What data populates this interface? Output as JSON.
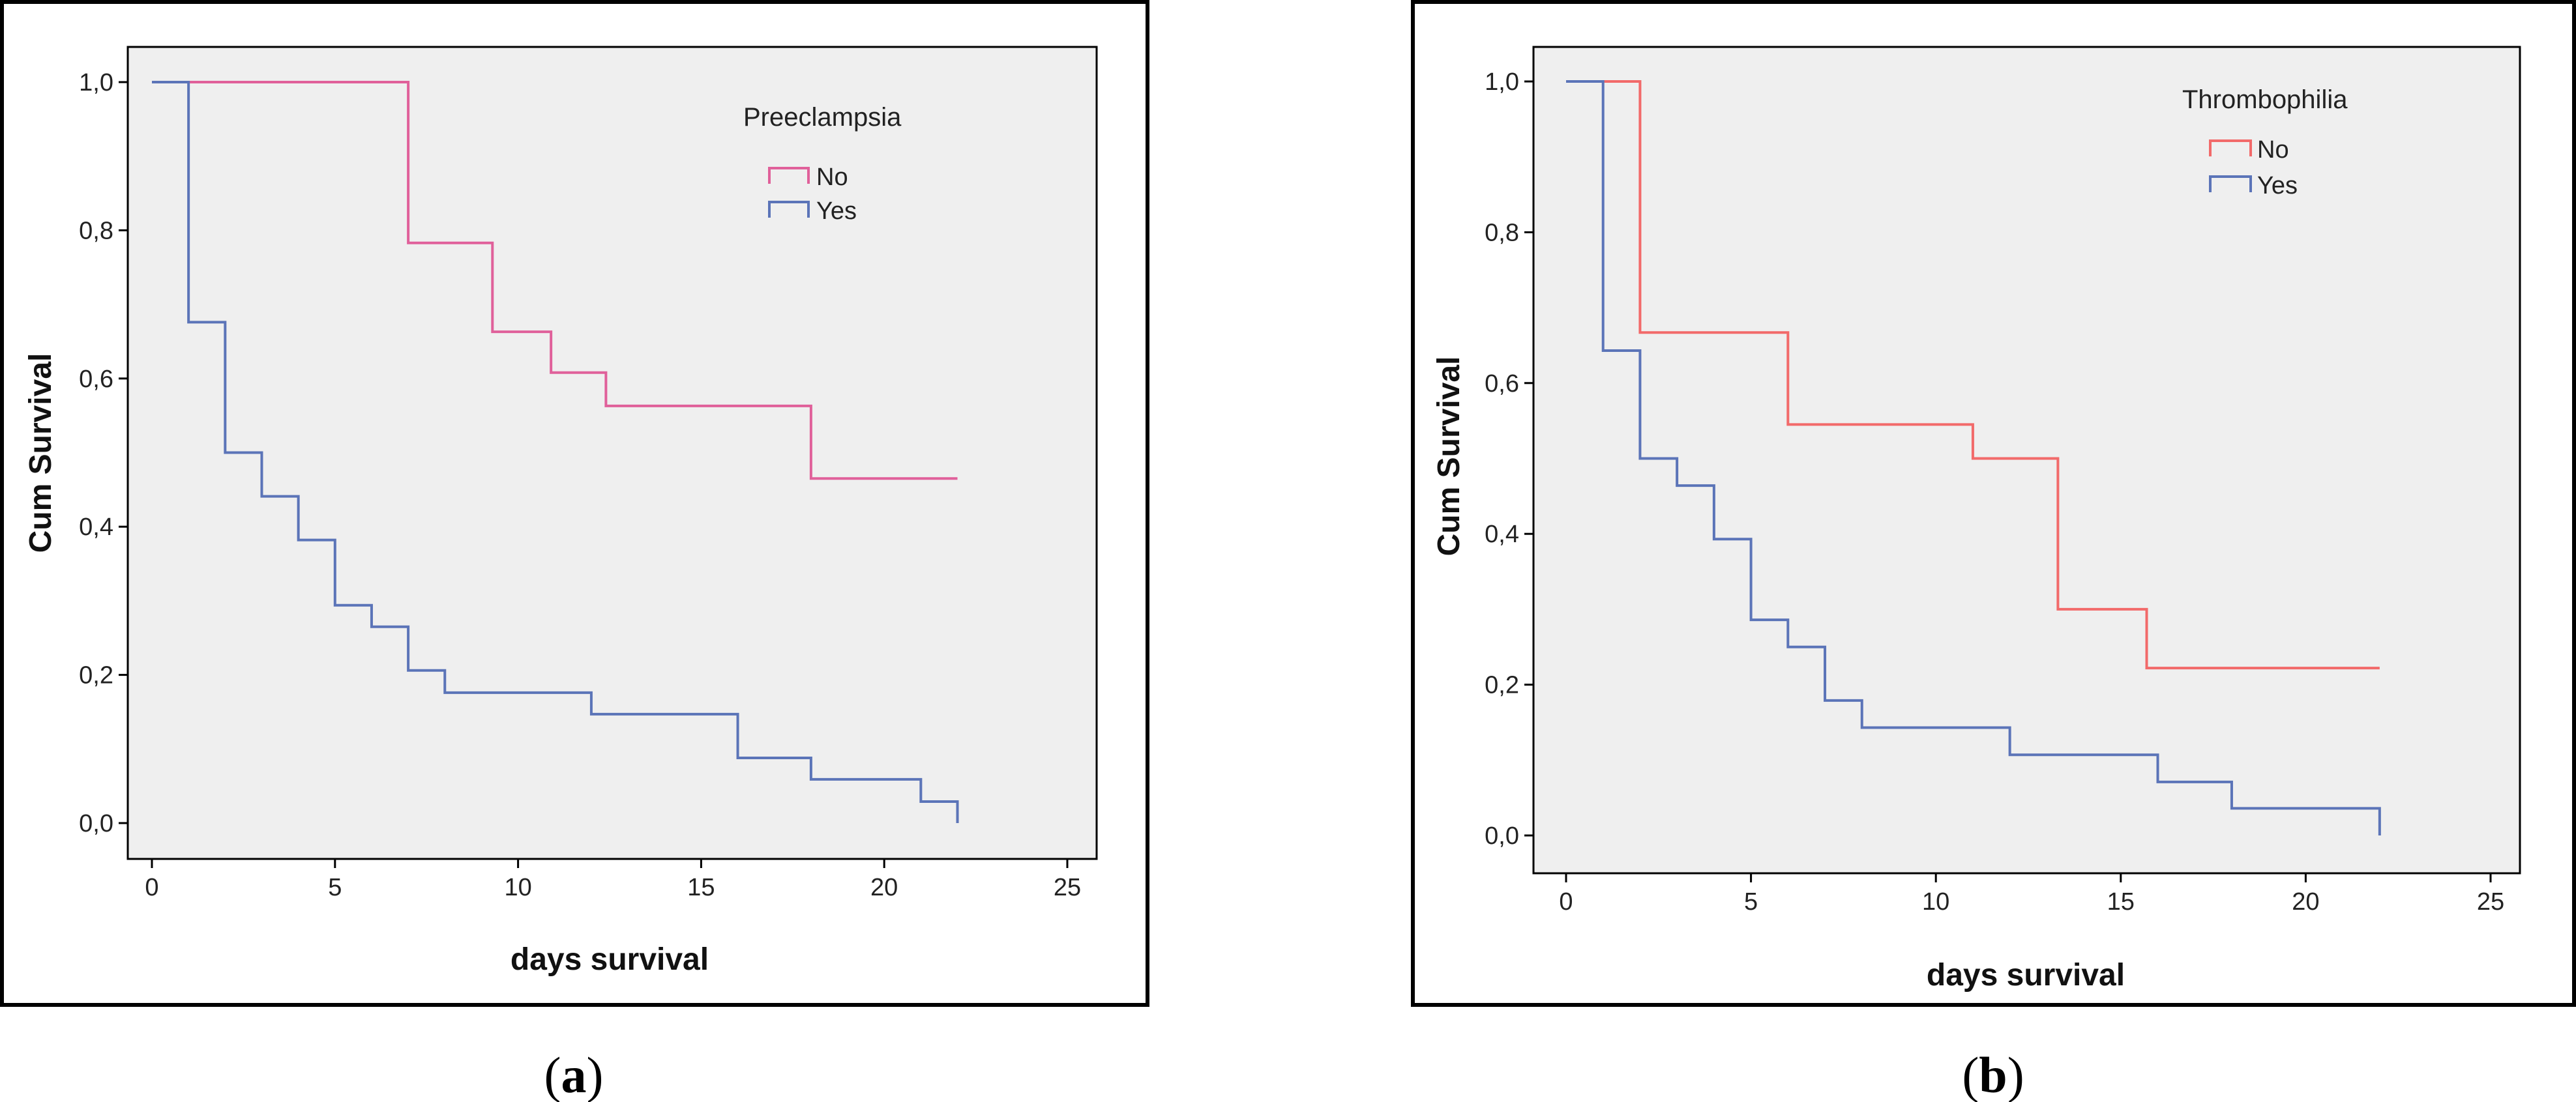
{
  "chart_data": [
    {
      "type": "line",
      "subtype": "kaplan-meier-step",
      "panel_label": "a",
      "title": "",
      "xlabel": "days survival",
      "ylabel": "Cum Survival",
      "xlim": [
        0,
        25
      ],
      "ylim": [
        0,
        1
      ],
      "x_ticks": [
        "0",
        "5",
        "10",
        "15",
        "20",
        "25"
      ],
      "y_ticks": [
        "0,0",
        "0,2",
        "0,4",
        "0,6",
        "0,8",
        "1,0"
      ],
      "grid": false,
      "legend_title": "Preeclampsia",
      "legend_position": "top-right",
      "series": [
        {
          "name": "No",
          "color": "#e0609a",
          "steps": [
            [
              0,
              1.0
            ],
            [
              7,
              0.783
            ],
            [
              9.3,
              0.663
            ],
            [
              10.9,
              0.608
            ],
            [
              12.4,
              0.563
            ],
            [
              18,
              0.465
            ],
            [
              22,
              0.465
            ]
          ]
        },
        {
          "name": "Yes",
          "color": "#5b74b8",
          "steps": [
            [
              0,
              1.0
            ],
            [
              1,
              0.676
            ],
            [
              2,
              0.5
            ],
            [
              3,
              0.441
            ],
            [
              4,
              0.382
            ],
            [
              5,
              0.294
            ],
            [
              6,
              0.265
            ],
            [
              7,
              0.206
            ],
            [
              8,
              0.176
            ],
            [
              12,
              0.147
            ],
            [
              16,
              0.088
            ],
            [
              18,
              0.059
            ],
            [
              21,
              0.029
            ],
            [
              22,
              0.0
            ]
          ]
        }
      ]
    },
    {
      "type": "line",
      "subtype": "kaplan-meier-step",
      "panel_label": "b",
      "title": "",
      "xlabel": "days survival",
      "ylabel": "Cum Survival",
      "xlim": [
        0,
        25
      ],
      "ylim": [
        0,
        1
      ],
      "x_ticks": [
        "0",
        "5",
        "10",
        "15",
        "20",
        "25"
      ],
      "y_ticks": [
        "0,0",
        "0,2",
        "0,4",
        "0,6",
        "0,8",
        "1,0"
      ],
      "grid": false,
      "legend_title": "Thrombophilia",
      "legend_position": "top-right",
      "series": [
        {
          "name": "No",
          "color": "#f26a6a",
          "steps": [
            [
              0,
              1.0
            ],
            [
              2,
              0.667
            ],
            [
              6,
              0.545
            ],
            [
              11,
              0.5
            ],
            [
              13.3,
              0.3
            ],
            [
              15.7,
              0.222
            ],
            [
              22,
              0.222
            ]
          ]
        },
        {
          "name": "Yes",
          "color": "#5b74b8",
          "steps": [
            [
              0,
              1.0
            ],
            [
              1,
              0.643
            ],
            [
              2,
              0.5
            ],
            [
              3,
              0.464
            ],
            [
              4,
              0.393
            ],
            [
              5,
              0.286
            ],
            [
              6,
              0.25
            ],
            [
              7,
              0.179
            ],
            [
              8,
              0.143
            ],
            [
              12,
              0.107
            ],
            [
              16,
              0.071
            ],
            [
              18,
              0.036
            ],
            [
              22,
              0.0
            ]
          ]
        }
      ]
    }
  ]
}
